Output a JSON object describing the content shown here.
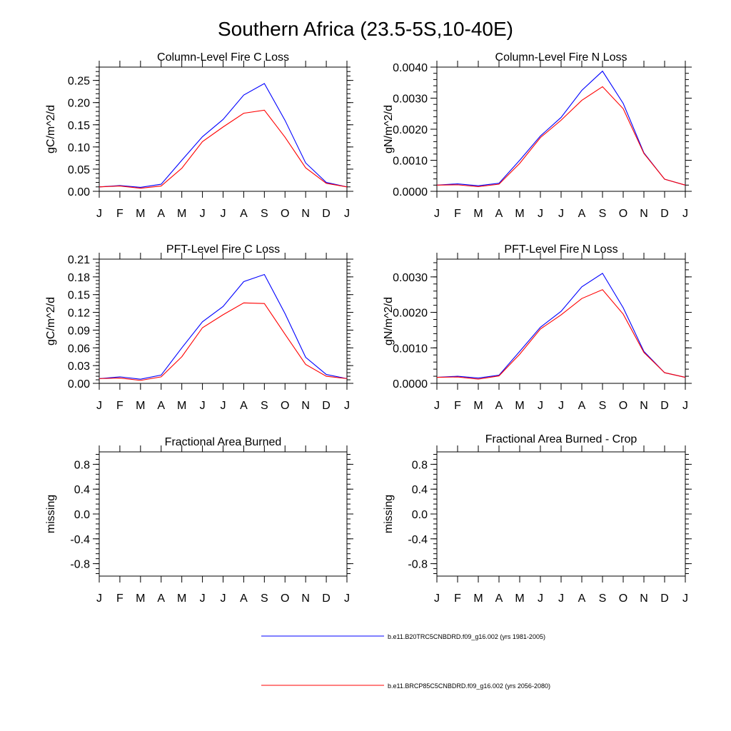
{
  "figure": {
    "title": "Southern Africa (23.5-5S,10-40E)"
  },
  "colors": {
    "series_1": "#0000ff",
    "series_2": "#ff0000",
    "axis": "#000000"
  },
  "chart_data": [
    {
      "type": "line",
      "title": "Column-Level Fire C Loss",
      "xlabel": "",
      "ylabel": "gC/m^2/d",
      "x": [
        "J",
        "F",
        "M",
        "A",
        "M",
        "J",
        "J",
        "A",
        "S",
        "O",
        "N",
        "D",
        "J"
      ],
      "ylim": [
        0,
        0.28
      ],
      "yticks": [
        0.0,
        0.05,
        0.1,
        0.15,
        0.2,
        0.25
      ],
      "ytick_labels": [
        "0.00",
        "0.05",
        "0.10",
        "0.15",
        "0.20",
        "0.25"
      ],
      "series": [
        {
          "name": "b.e11.B20TRC5CNBDRD.f09_g16.002 (yrs 1981-2005)",
          "values": [
            0.01,
            0.013,
            0.009,
            0.016,
            0.07,
            0.123,
            0.162,
            0.217,
            0.243,
            0.16,
            0.064,
            0.02,
            0.01
          ]
        },
        {
          "name": "b.e11.BRCP85C5CNBDRD.f09_g16.002 (yrs 2056-2080)",
          "values": [
            0.01,
            0.012,
            0.007,
            0.012,
            0.052,
            0.112,
            0.145,
            0.176,
            0.183,
            0.122,
            0.053,
            0.018,
            0.01
          ]
        }
      ]
    },
    {
      "type": "line",
      "title": "Column-Level Fire N Loss",
      "xlabel": "",
      "ylabel": "gN/m^2/d",
      "x": [
        "J",
        "F",
        "M",
        "A",
        "M",
        "J",
        "J",
        "A",
        "S",
        "O",
        "N",
        "D",
        "J"
      ],
      "ylim": [
        0,
        0.004
      ],
      "yticks": [
        0.0,
        0.001,
        0.002,
        0.003,
        0.004
      ],
      "ytick_labels": [
        "0.0000",
        "0.0010",
        "0.0020",
        "0.0030",
        "0.0040"
      ],
      "series": [
        {
          "name": "b.e11.B20TRC5CNBDRD.f09_g16.002 (yrs 1981-2005)",
          "values": [
            0.0002,
            0.00024,
            0.00018,
            0.00026,
            0.001,
            0.00178,
            0.00238,
            0.00325,
            0.00387,
            0.00283,
            0.00124,
            0.00039,
            0.0002
          ]
        },
        {
          "name": "b.e11.BRCP85C5CNBDRD.f09_g16.002 (yrs 2056-2080)",
          "values": [
            0.0002,
            0.00021,
            0.00015,
            0.00023,
            0.0009,
            0.00173,
            0.00229,
            0.00293,
            0.00337,
            0.00266,
            0.00122,
            0.00039,
            0.0002
          ]
        }
      ]
    },
    {
      "type": "line",
      "title": "PFT-Level Fire C Loss",
      "xlabel": "",
      "ylabel": "gC/m^2/d",
      "x": [
        "J",
        "F",
        "M",
        "A",
        "M",
        "J",
        "J",
        "A",
        "S",
        "O",
        "N",
        "D",
        "J"
      ],
      "ylim": [
        0,
        0.21
      ],
      "yticks": [
        0.0,
        0.03,
        0.06,
        0.09,
        0.12,
        0.15,
        0.18,
        0.21
      ],
      "ytick_labels": [
        "0.00",
        "0.03",
        "0.06",
        "0.09",
        "0.12",
        "0.15",
        "0.18",
        "0.21"
      ],
      "series": [
        {
          "name": "b.e11.B20TRC5CNBDRD.f09_g16.002 (yrs 1981-2005)",
          "values": [
            0.008,
            0.011,
            0.007,
            0.014,
            0.06,
            0.104,
            0.13,
            0.172,
            0.184,
            0.118,
            0.044,
            0.015,
            0.008
          ]
        },
        {
          "name": "b.e11.BRCP85C5CNBDRD.f09_g16.002 (yrs 2056-2080)",
          "values": [
            0.008,
            0.009,
            0.005,
            0.011,
            0.045,
            0.094,
            0.116,
            0.136,
            0.135,
            0.083,
            0.032,
            0.012,
            0.008
          ]
        }
      ]
    },
    {
      "type": "line",
      "title": "PFT-Level Fire N Loss",
      "xlabel": "",
      "ylabel": "gN/m^2/d",
      "x": [
        "J",
        "F",
        "M",
        "A",
        "M",
        "J",
        "J",
        "A",
        "S",
        "O",
        "N",
        "D",
        "J"
      ],
      "ylim": [
        0,
        0.0035
      ],
      "yticks": [
        0.0,
        0.001,
        0.002,
        0.003
      ],
      "ytick_labels": [
        "0.0000",
        "0.0010",
        "0.0020",
        "0.0030"
      ],
      "series": [
        {
          "name": "b.e11.B20TRC5CNBDRD.f09_g16.002 (yrs 1981-2005)",
          "values": [
            0.00017,
            0.0002,
            0.00015,
            0.00023,
            0.0009,
            0.00158,
            0.00203,
            0.00272,
            0.0031,
            0.00213,
            0.0009,
            0.0003,
            0.00017
          ]
        },
        {
          "name": "b.e11.BRCP85C5CNBDRD.f09_g16.002 (yrs 2056-2080)",
          "values": [
            0.00017,
            0.00018,
            0.00012,
            0.00021,
            0.00082,
            0.00153,
            0.00193,
            0.00239,
            0.00264,
            0.00195,
            0.00087,
            0.0003,
            0.00017
          ]
        }
      ]
    },
    {
      "type": "line",
      "title": "Fractional Area Burned",
      "xlabel": "",
      "ylabel": "missing",
      "x": [
        "J",
        "F",
        "M",
        "A",
        "M",
        "J",
        "J",
        "A",
        "S",
        "O",
        "N",
        "D",
        "J"
      ],
      "ylim": [
        -1,
        1
      ],
      "yticks": [
        -0.8,
        -0.4,
        0.0,
        0.4,
        0.8
      ],
      "ytick_labels": [
        "-0.8",
        "-0.4",
        "0.0",
        "0.4",
        "0.8"
      ],
      "series": []
    },
    {
      "type": "line",
      "title": "Fractional Area Burned - Crop",
      "xlabel": "",
      "ylabel": "missing",
      "x": [
        "J",
        "F",
        "M",
        "A",
        "M",
        "J",
        "J",
        "A",
        "S",
        "O",
        "N",
        "D",
        "J"
      ],
      "ylim": [
        -1,
        1
      ],
      "yticks": [
        -0.8,
        -0.4,
        0.0,
        0.4,
        0.8
      ],
      "ytick_labels": [
        "-0.8",
        "-0.4",
        "0.0",
        "0.4",
        "0.8"
      ],
      "series": []
    }
  ],
  "legend": {
    "entries": [
      {
        "label": "b.e11.B20TRC5CNBDRD.f09_g16.002 (yrs 1981-2005)",
        "color": "#0000ff"
      },
      {
        "label": "b.e11.BRCP85C5CNBDRD.f09_g16.002 (yrs 2056-2080)",
        "color": "#ff0000"
      }
    ]
  }
}
